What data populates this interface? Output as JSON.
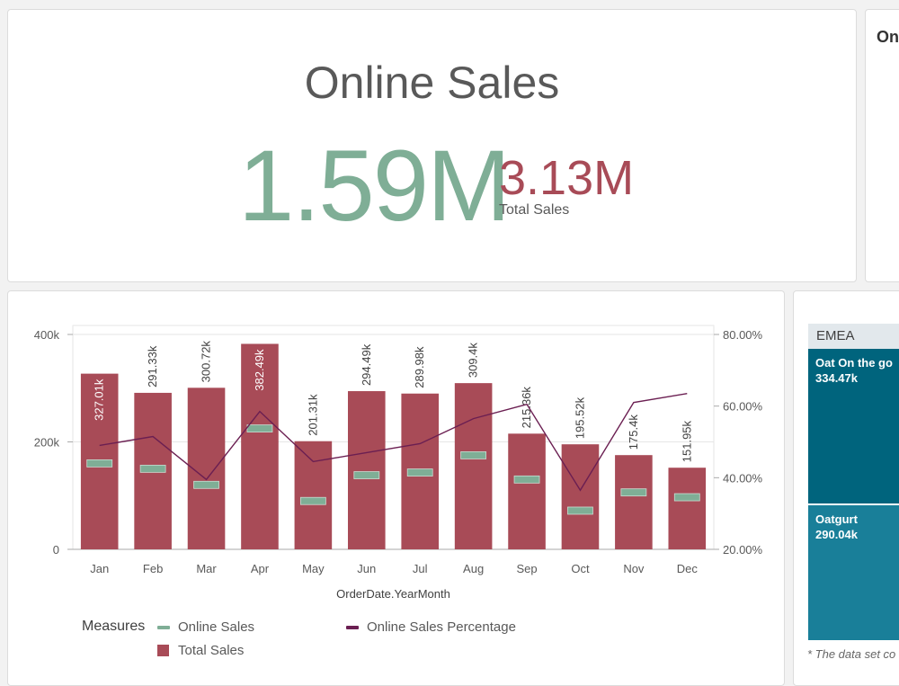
{
  "kpi": {
    "title": "Online Sales",
    "main_value": "1.59M",
    "secondary_value": "3.13M",
    "secondary_label": "Total Sales"
  },
  "right_card": {
    "title": "On"
  },
  "colors": {
    "online_sales": "#7fae96",
    "total_sales": "#a84b57",
    "online_sales_percentage": "#6b1f52",
    "treemap_dark": "#00647d",
    "treemap_mid": "#197f99"
  },
  "chart": {
    "legend_title": "Measures",
    "legend": {
      "online_sales": "Online Sales",
      "total_sales": "Total Sales",
      "online_sales_percentage": "Online Sales Percentage"
    }
  },
  "chart_data": {
    "type": "bar",
    "xlabel": "OrderDate.YearMonth",
    "ylabel": "",
    "categories": [
      "Jan",
      "Feb",
      "Mar",
      "Apr",
      "May",
      "Jun",
      "Jul",
      "Aug",
      "Sep",
      "Oct",
      "Nov",
      "Dec"
    ],
    "ylim": [
      0,
      400000
    ],
    "y_ticks": [
      0,
      200000,
      400000
    ],
    "y_tick_labels": [
      "0",
      "200k",
      "400k"
    ],
    "y2lim": [
      20,
      80
    ],
    "y2_ticks": [
      20,
      40,
      60,
      80
    ],
    "y2_tick_labels": [
      "20.00%",
      "40.00%",
      "60.00%",
      "80.00%"
    ],
    "grid": true,
    "legend_position": "bottom",
    "series": [
      {
        "name": "Total Sales",
        "type": "bar",
        "values": [
          327010,
          291330,
          300720,
          382490,
          201310,
          294490,
          289980,
          309400,
          215360,
          195520,
          175400,
          151950
        ],
        "labels": [
          "327.01k",
          "291.33k",
          "300.72k",
          "382.49k",
          "201.31k",
          "294.49k",
          "289.98k",
          "309.4k",
          "215.36k",
          "195.52k",
          "175.4k",
          "151.95k"
        ]
      },
      {
        "name": "Online Sales",
        "type": "marker",
        "values": [
          160000,
          150000,
          120000,
          225000,
          90000,
          138000,
          143000,
          175000,
          130000,
          72000,
          106000,
          97000
        ]
      },
      {
        "name": "Online Sales Percentage",
        "type": "line",
        "axis": "right",
        "values": [
          49,
          51.5,
          39.5,
          58.5,
          44.5,
          47,
          49.5,
          56.5,
          60.5,
          36.5,
          61,
          63.5
        ]
      }
    ]
  },
  "treemap": {
    "header": "EMEA",
    "cells": [
      {
        "label": "Oat On the go",
        "value": "334.47k"
      },
      {
        "label": "Oatgurt",
        "value": "290.04k"
      }
    ],
    "footnote": "* The data set co"
  }
}
